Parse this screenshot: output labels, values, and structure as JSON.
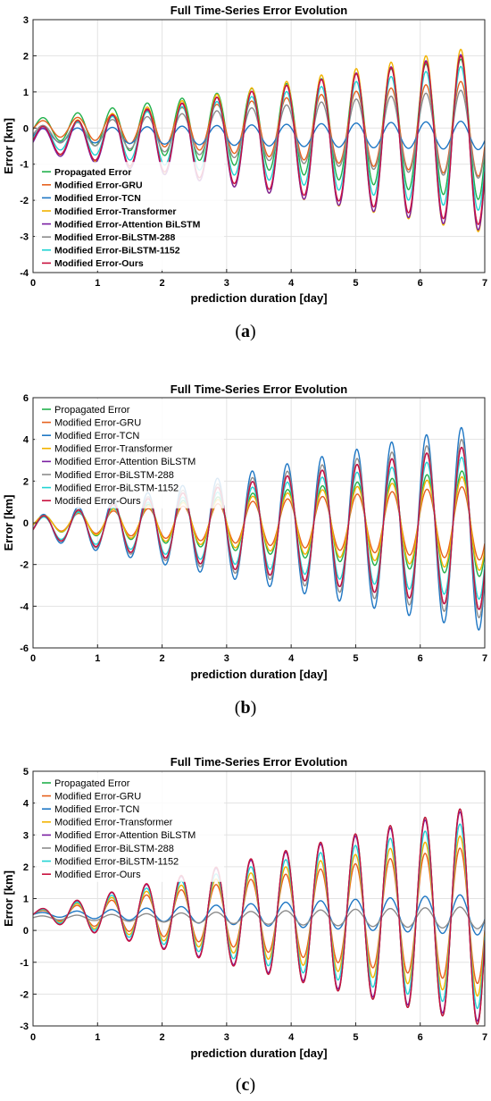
{
  "chart_data": [
    {
      "type": "line",
      "caption": "(a)",
      "title": "Full Time-Series Error Evolution",
      "xlabel": "prediction duration [day]",
      "ylabel": "Error [km]",
      "xlim": [
        0,
        7
      ],
      "ylim": [
        -4,
        3
      ],
      "xticks": [
        0,
        1,
        2,
        3,
        4,
        5,
        6,
        7
      ],
      "yticks": [
        -4,
        -3,
        -2,
        -1,
        0,
        1,
        2,
        3
      ],
      "grid": true,
      "legend_position": "bottom-left",
      "legend_bold": true,
      "period_days": 0.54,
      "series": [
        {
          "name": "Propagated Error",
          "color": "#22b14c",
          "offset": 0,
          "amp_start": 0.25,
          "amp_end": 2.0,
          "phase": -0.15
        },
        {
          "name": "Modified Error-GRU",
          "color": "#e6621e",
          "offset": 0,
          "amp_start": 0.18,
          "amp_end": 1.35,
          "phase": -0.15
        },
        {
          "name": "Modified Error-TCN",
          "color": "#1f77c4",
          "offset": -0.2,
          "amp_start": 0.18,
          "amp_end": 0.4,
          "phase": -0.15
        },
        {
          "name": "Modified Error-Transformer",
          "color": "#f2b300",
          "offset": -0.3,
          "amp_start": 0.3,
          "amp_end": 2.6,
          "phase": -0.15
        },
        {
          "name": "Modified Error-Attention BiLSTM",
          "color": "#7a1fa2",
          "offset": -0.35,
          "amp_start": 0.3,
          "amp_end": 2.5,
          "phase": -0.15
        },
        {
          "name": "Modified Error-BiLSTM-288",
          "color": "#8c8c8c",
          "offset": -0.15,
          "amp_start": 0.2,
          "amp_end": 1.25,
          "phase": -0.15
        },
        {
          "name": "Modified Error-BiLSTM-1152",
          "color": "#22d3d3",
          "offset": -0.25,
          "amp_start": 0.25,
          "amp_end": 2.05,
          "phase": -0.15
        },
        {
          "name": "Modified Error-Ours",
          "color": "#c8103e",
          "offset": -0.3,
          "amp_start": 0.3,
          "amp_end": 2.4,
          "phase": -0.15
        }
      ]
    },
    {
      "type": "line",
      "caption": "(b)",
      "title": "Full Time-Series Error Evolution",
      "xlabel": "prediction duration [day]",
      "ylabel": "Error [km]",
      "xlim": [
        0,
        7
      ],
      "ylim": [
        -6,
        6
      ],
      "xticks": [
        0,
        1,
        2,
        3,
        4,
        5,
        6,
        7
      ],
      "yticks": [
        -6,
        -4,
        -2,
        0,
        2,
        4,
        6
      ],
      "grid": true,
      "legend_position": "top-left",
      "legend_bold": false,
      "period_days": 0.54,
      "series": [
        {
          "name": "Propagated Error",
          "color": "#22b14c",
          "offset": 0,
          "amp_start": 0.3,
          "amp_end": 2.6,
          "phase": -0.35
        },
        {
          "name": "Modified Error-GRU",
          "color": "#e6621e",
          "offset": 0,
          "amp_start": 0.3,
          "amp_end": 1.8,
          "phase": -0.35
        },
        {
          "name": "Modified Error-TCN",
          "color": "#1f77c4",
          "offset": -0.2,
          "amp_start": 0.5,
          "amp_end": 5.0,
          "phase": -0.25
        },
        {
          "name": "Modified Error-Transformer",
          "color": "#f2b300",
          "offset": 0,
          "amp_start": 0.3,
          "amp_end": 2.3,
          "phase": -0.35
        },
        {
          "name": "Modified Error-Attention BiLSTM",
          "color": "#7a1fa2",
          "offset": -0.2,
          "amp_start": 0.45,
          "amp_end": 4.0,
          "phase": -0.3
        },
        {
          "name": "Modified Error-BiLSTM-288",
          "color": "#8c8c8c",
          "offset": -0.2,
          "amp_start": 0.45,
          "amp_end": 4.4,
          "phase": -0.3
        },
        {
          "name": "Modified Error-BiLSTM-1152",
          "color": "#22d3d3",
          "offset": -0.2,
          "amp_start": 0.4,
          "amp_end": 3.5,
          "phase": -0.3
        },
        {
          "name": "Modified Error-Ours",
          "color": "#c8103e",
          "offset": -0.2,
          "amp_start": 0.45,
          "amp_end": 4.0,
          "phase": -0.3
        }
      ]
    },
    {
      "type": "line",
      "caption": "(c)",
      "title": "Full Time-Series Error Evolution",
      "xlabel": "prediction duration [day]",
      "ylabel": "Error [km]",
      "xlim": [
        0,
        7
      ],
      "ylim": [
        -3,
        5
      ],
      "xticks": [
        0,
        1,
        2,
        3,
        4,
        5,
        6,
        7
      ],
      "yticks": [
        -3,
        -2,
        -1,
        0,
        1,
        2,
        3,
        4,
        5
      ],
      "grid": true,
      "legend_position": "top-left",
      "legend_bold": false,
      "period_days": 0.54,
      "series": [
        {
          "name": "Propagated Error",
          "color": "#22b14c",
          "offset": 0.5,
          "amp_start": 0.1,
          "amp_end": 3.5,
          "phase": 0.0
        },
        {
          "name": "Modified Error-GRU",
          "color": "#e6621e",
          "offset": 0.5,
          "amp_start": 0.08,
          "amp_end": 2.2,
          "phase": 0.0
        },
        {
          "name": "Modified Error-TCN",
          "color": "#1f77c4",
          "offset": 0.5,
          "amp_start": 0.05,
          "amp_end": 0.65,
          "phase": 0.0
        },
        {
          "name": "Modified Error-Transformer",
          "color": "#f2b300",
          "offset": 0.5,
          "amp_start": 0.1,
          "amp_end": 2.6,
          "phase": 0.0
        },
        {
          "name": "Modified Error-Attention BiLSTM",
          "color": "#7a1fa2",
          "offset": 0.5,
          "amp_start": 0.12,
          "amp_end": 3.4,
          "phase": 0.0
        },
        {
          "name": "Modified Error-BiLSTM-288",
          "color": "#8c8c8c",
          "offset": 0.4,
          "amp_start": 0.05,
          "amp_end": 0.35,
          "phase": 0.0
        },
        {
          "name": "Modified Error-BiLSTM-1152",
          "color": "#22d3d3",
          "offset": 0.5,
          "amp_start": 0.1,
          "amp_end": 3.0,
          "phase": 0.0
        },
        {
          "name": "Modified Error-Ours",
          "color": "#c8103e",
          "offset": 0.5,
          "amp_start": 0.12,
          "amp_end": 3.5,
          "phase": 0.0
        }
      ]
    }
  ]
}
